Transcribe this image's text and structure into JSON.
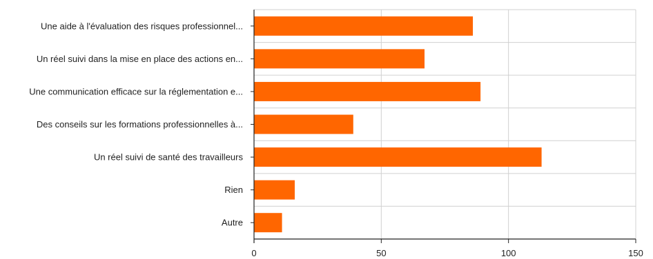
{
  "chart_data": {
    "type": "bar",
    "orientation": "horizontal",
    "categories": [
      "Une aide à l'évaluation des risques professionnel...",
      "Un réel suivi dans la mise en place des actions en...",
      "Une communication efficace sur la réglementation e...",
      "Des conseils sur les formations professionnelles à...",
      "Un réel suivi de santé des travailleurs",
      "Rien",
      "Autre"
    ],
    "values": [
      86,
      67,
      89,
      39,
      113,
      16,
      11
    ],
    "xlim": [
      0,
      150
    ],
    "xticks": [
      0,
      50,
      100,
      150
    ],
    "xtick_labels": [
      "0",
      "50",
      "100",
      "150"
    ],
    "grid": "vertical and horizontal gridlines",
    "bar_color": "#ff6600",
    "grid_color": "#d0d0d0",
    "axis_color": "#222222"
  }
}
